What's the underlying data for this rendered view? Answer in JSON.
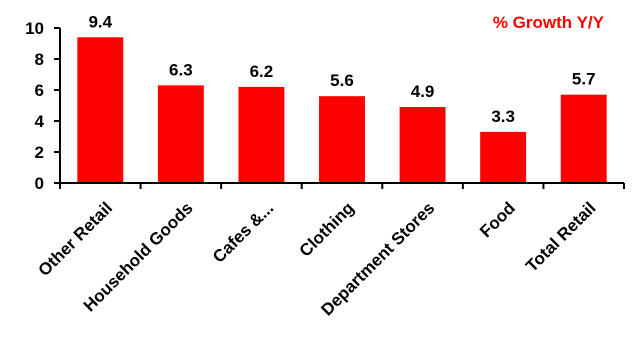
{
  "chart_data": {
    "type": "bar",
    "title": "",
    "legend": "% Growth Y/Y",
    "legend_position": "top-right",
    "xlabel": "",
    "ylabel": "",
    "categories": [
      "Other Retail",
      "Household Goods",
      "Cafes &...",
      "Clothing",
      "Department Stores",
      "Food",
      "Total Retail"
    ],
    "values": [
      9.4,
      6.3,
      6.2,
      5.6,
      4.9,
      3.3,
      5.7
    ],
    "data_labels": [
      "9.4",
      "6.3",
      "6.2",
      "5.6",
      "4.9",
      "3.3",
      "5.7"
    ],
    "ylim": [
      0,
      10
    ],
    "yticks": [
      0,
      2,
      4,
      6,
      8,
      10
    ],
    "grid": false,
    "bar_color": "#ff0000",
    "legend_color": "#ff0000"
  }
}
